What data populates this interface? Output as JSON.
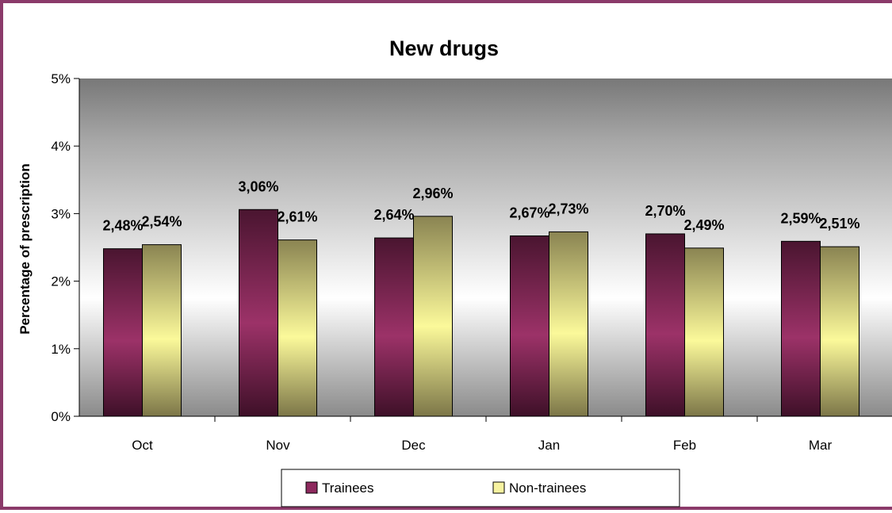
{
  "chart_data": {
    "type": "bar",
    "title": "New drugs",
    "xlabel": "",
    "ylabel": "Percentage of prescription",
    "categories": [
      "Oct",
      "Nov",
      "Dec",
      "Jan",
      "Feb",
      "Mar"
    ],
    "series": [
      {
        "name": "Trainees",
        "values": [
          2.48,
          3.06,
          2.64,
          2.67,
          2.7,
          2.59
        ],
        "labels": [
          "2,48%",
          "3,06%",
          "2,64%",
          "2,67%",
          "2,70%",
          "2,59%"
        ],
        "color": "#8e2a5e"
      },
      {
        "name": "Non-trainees",
        "values": [
          2.54,
          2.61,
          2.96,
          2.73,
          2.49,
          2.51
        ],
        "labels": [
          "2,54%",
          "2,61%",
          "2,96%",
          "2,73%",
          "2,49%",
          "2,51%"
        ],
        "color": "#f6f2a0"
      }
    ],
    "yticks": [
      "0%",
      "1%",
      "2%",
      "3%",
      "4%",
      "5%"
    ],
    "ylim": [
      0,
      5
    ],
    "grid": false,
    "legend_position": "bottom"
  },
  "colors": {
    "frame": "#8b3a6a",
    "plot_top": "#7a7a7a",
    "plot_mid": "#ffffff"
  }
}
